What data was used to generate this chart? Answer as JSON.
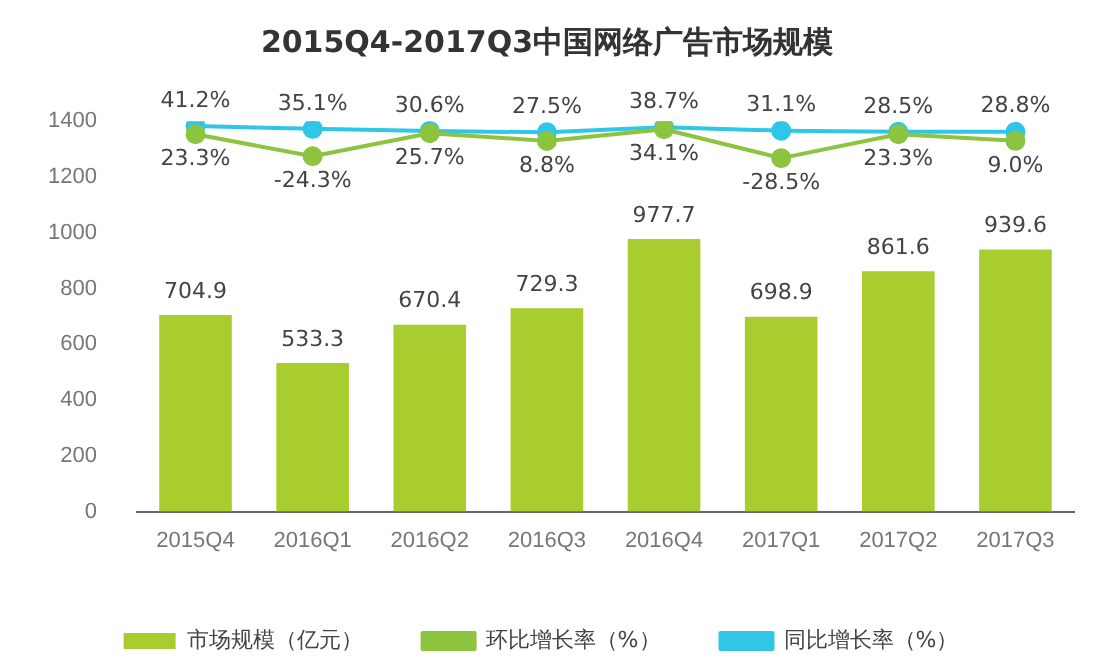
{
  "chart_data": {
    "type": "bar",
    "title": "2015Q4-2017Q3中国网络广告市场规模",
    "categories": [
      "2015Q4",
      "2016Q1",
      "2016Q2",
      "2016Q3",
      "2016Q4",
      "2017Q1",
      "2017Q2",
      "2017Q3"
    ],
    "series": [
      {
        "name": "市场规模（亿元）",
        "color": "#a9cd2f",
        "values": [
          704.9,
          533.3,
          670.4,
          729.3,
          977.7,
          698.9,
          861.6,
          939.6
        ],
        "value_labels": [
          "704.9",
          "533.3",
          "670.4",
          "729.3",
          "977.7",
          "698.9",
          "861.6",
          "939.6"
        ]
      },
      {
        "name": "环比增长率（%）",
        "type": "line",
        "axis": "y2",
        "color": "#8dc43f",
        "values": [
          23.3,
          -24.3,
          25.7,
          8.8,
          34.1,
          -28.5,
          23.3,
          9.0
        ],
        "value_labels": [
          "23.3%",
          "-24.3%",
          "25.7%",
          "8.8%",
          "34.1%",
          "-28.5%",
          "23.3%",
          "9.0%"
        ]
      },
      {
        "name": "同比增长率（%）",
        "type": "line",
        "axis": "y2",
        "color": "#2fc6e8",
        "values": [
          41.2,
          35.1,
          30.6,
          27.5,
          38.7,
          31.1,
          28.5,
          28.8
        ],
        "value_labels": [
          "41.2%",
          "35.1%",
          "30.6%",
          "27.5%",
          "38.7%",
          "31.1%",
          "28.5%",
          "28.8%"
        ]
      }
    ],
    "ylim": [
      0,
      1400
    ],
    "yticks": [
      0,
      200,
      400,
      600,
      800,
      1000,
      1200,
      1400
    ],
    "grid": false,
    "legend": "bottom",
    "marker": "circle",
    "line_style": "solid"
  }
}
